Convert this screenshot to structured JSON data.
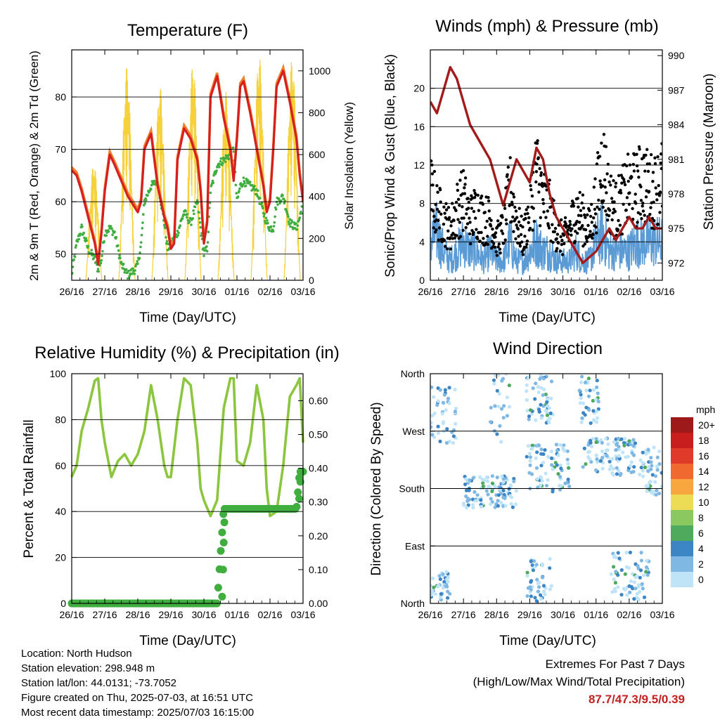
{
  "colors": {
    "temp_red": "#d61f1f",
    "temp_orange": "#f08030",
    "dewpoint_green": "#3fae3f",
    "solar_yellow": "#f5d23c",
    "wind_blue": "#5b9bd5",
    "gust_black": "#000000",
    "pressure_maroon": "#a31c1c",
    "rh_green": "#8cc63f",
    "precip_green": "#3fae3f",
    "extremes_red": "#c42020"
  },
  "x_ticks": [
    "26/16",
    "27/16",
    "28/16",
    "29/16",
    "30/16",
    "01/16",
    "02/16",
    "03/16"
  ],
  "x_label": "Time (Day/UTC)",
  "chart_data": [
    {
      "id": "temperature",
      "type": "line",
      "title": "Temperature (F)",
      "xlabel": "Time (Day/UTC)",
      "ylabel": "2m & 9m T (Red, Orange) & 2m Td (Green)",
      "y2label": "Solar Insolation (Yellow)",
      "ylim": [
        45,
        89
      ],
      "y_ticks": [
        50,
        60,
        70,
        80
      ],
      "y2lim": [
        0,
        1100
      ],
      "y2_ticks": [
        0,
        200,
        400,
        600,
        800,
        1000
      ],
      "x": [
        0,
        0.15,
        0.3,
        0.5,
        0.7,
        0.8,
        0.9,
        1.0,
        1.15,
        1.3,
        1.5,
        1.7,
        1.9,
        2.0,
        2.1,
        2.2,
        2.4,
        2.6,
        2.8,
        2.9,
        3.0,
        3.1,
        3.2,
        3.4,
        3.6,
        3.8,
        3.9,
        4.0,
        4.1,
        4.2,
        4.4,
        4.6,
        4.8,
        4.9,
        5.0,
        5.1,
        5.2,
        5.4,
        5.6,
        5.8,
        5.9,
        6.0,
        6.1,
        6.2,
        6.4,
        6.6,
        6.8,
        6.9,
        7.0
      ],
      "series": [
        {
          "name": "2m T",
          "values": [
            66,
            65,
            62,
            57,
            52,
            48,
            54,
            62,
            69,
            67,
            64,
            61,
            59,
            58,
            60,
            70,
            73,
            63,
            57,
            55,
            51,
            52,
            68,
            74,
            72,
            68,
            62,
            52,
            56,
            80,
            84,
            76,
            70,
            64,
            72,
            82,
            83,
            77,
            70,
            63,
            58,
            60,
            70,
            82,
            85,
            79,
            72,
            65,
            60
          ]
        },
        {
          "name": "2m Td",
          "values": [
            46,
            52,
            55,
            51,
            49,
            47,
            49,
            54,
            55,
            54,
            48,
            46,
            47,
            48,
            52,
            60,
            63,
            64,
            56,
            51,
            52,
            53,
            54,
            58,
            56,
            60,
            55,
            50,
            51,
            62,
            67,
            68,
            69,
            70,
            60,
            63,
            64,
            63,
            62,
            58,
            56,
            55,
            55,
            60,
            61,
            56,
            55,
            57,
            60
          ]
        }
      ],
      "solar_days": [
        {
          "day": 0,
          "peak": 560
        },
        {
          "day": 1,
          "peak": 1020
        },
        {
          "day": 2,
          "peak": 930
        },
        {
          "day": 3,
          "peak": 1040
        },
        {
          "day": 4,
          "peak": 900
        },
        {
          "day": 5,
          "peak": 1080
        },
        {
          "day": 6,
          "peak": 1060
        }
      ]
    },
    {
      "id": "winds",
      "type": "line",
      "title": "Winds (mph) & Pressure (mb)",
      "xlabel": "Time (Day/UTC)",
      "ylabel": "Sonic/Prop Wind & Gust (Blue, Black)",
      "y2label": "Station Pressure (Maroon)",
      "ylim": [
        0,
        24
      ],
      "y_ticks": [
        0,
        4,
        8,
        12,
        16,
        20
      ],
      "y2lim": [
        970.5,
        990.5
      ],
      "y2_ticks": [
        972,
        975,
        978,
        981,
        984,
        987,
        990
      ],
      "x": [
        0,
        0.2,
        0.4,
        0.6,
        0.8,
        1.0,
        1.2,
        1.4,
        1.6,
        1.8,
        2.0,
        2.2,
        2.4,
        2.6,
        2.8,
        3.0,
        3.2,
        3.4,
        3.6,
        3.8,
        4.0,
        4.2,
        4.4,
        4.6,
        4.8,
        5.0,
        5.2,
        5.4,
        5.6,
        5.8,
        6.0,
        6.2,
        6.4,
        6.6,
        6.8,
        7.0
      ],
      "series": [
        {
          "name": "Wind (blue)",
          "values": [
            4,
            5,
            3,
            2,
            3,
            4,
            3,
            3,
            2,
            3,
            2,
            2,
            4,
            2,
            2,
            3,
            4,
            3,
            3,
            2,
            2,
            2,
            3,
            2,
            2,
            4,
            5,
            3,
            3,
            3,
            3,
            4,
            4,
            4,
            4,
            4
          ]
        },
        {
          "name": "Gust (black)",
          "values": [
            9,
            7,
            6,
            5,
            7,
            8,
            6,
            7,
            6,
            6,
            4,
            5,
            9,
            6,
            4,
            7,
            11,
            8,
            7,
            5,
            4,
            5,
            7,
            6,
            5,
            8,
            12,
            8,
            7,
            8,
            9,
            9,
            10,
            9,
            9,
            10
          ]
        },
        {
          "name": "Pressure (maroon)",
          "values": [
            986,
            985,
            987,
            989,
            988,
            986,
            984,
            983,
            982,
            981,
            979,
            977,
            979,
            981,
            980,
            979,
            982,
            981,
            978,
            976,
            975,
            974,
            973,
            972,
            972.5,
            973,
            974,
            975,
            974,
            975,
            976,
            975,
            975,
            976,
            975,
            975
          ]
        }
      ]
    },
    {
      "id": "humidity",
      "type": "line",
      "title": "Relative Humidity (%) & Precipitation (in)",
      "xlabel": "Time (Day/UTC)",
      "ylabel": "Percent & Total Rainfall",
      "ylim": [
        0,
        100
      ],
      "y_ticks": [
        0,
        20,
        40,
        60,
        80,
        100
      ],
      "y2lim": [
        0,
        0.68
      ],
      "y2_ticks": [
        "0.00",
        "0.10",
        "0.20",
        "0.30",
        "0.40",
        "0.50",
        "0.60"
      ],
      "x": [
        0,
        0.15,
        0.3,
        0.5,
        0.7,
        0.8,
        0.9,
        1.0,
        1.2,
        1.4,
        1.6,
        1.8,
        2.0,
        2.2,
        2.4,
        2.6,
        2.8,
        2.9,
        3.0,
        3.2,
        3.4,
        3.6,
        3.8,
        3.9,
        4.0,
        4.2,
        4.4,
        4.6,
        4.8,
        4.9,
        5.0,
        5.2,
        5.4,
        5.6,
        5.8,
        5.9,
        6.0,
        6.2,
        6.4,
        6.6,
        6.8,
        6.9,
        7.0
      ],
      "series": [
        {
          "name": "RH",
          "values": [
            55,
            60,
            75,
            85,
            97,
            98,
            80,
            70,
            55,
            62,
            65,
            60,
            65,
            75,
            95,
            80,
            60,
            55,
            55,
            80,
            98,
            95,
            70,
            50,
            45,
            38,
            45,
            85,
            98,
            98,
            62,
            60,
            70,
            95,
            80,
            50,
            38,
            40,
            60,
            90,
            95,
            98,
            70
          ]
        },
        {
          "name": "Precip",
          "values": [
            0,
            0,
            0,
            0,
            0,
            0,
            0,
            0,
            0,
            0,
            0,
            0,
            0,
            0,
            0,
            0,
            0,
            0,
            0,
            0,
            0,
            0,
            0,
            0,
            0,
            0,
            0,
            0.28,
            0.28,
            0.28,
            0.28,
            0.28,
            0.28,
            0.28,
            0.28,
            0.28,
            0.28,
            0.28,
            0.28,
            0.28,
            0.28,
            0.39,
            0.39
          ]
        }
      ]
    },
    {
      "id": "direction",
      "type": "scatter",
      "title": "Wind Direction",
      "xlabel": "Time (Day/UTC)",
      "ylabel": "Direction (Colored By Speed)",
      "y_ticks": [
        "North",
        "East",
        "South",
        "West",
        "North"
      ],
      "ylim": [
        0,
        360
      ],
      "legend_title": "mph",
      "legend_labels": [
        "20+",
        "18",
        "16",
        "14",
        "12",
        "10",
        "8",
        "6",
        "4",
        "2",
        "0"
      ],
      "legend_colors": [
        "#9e1a1a",
        "#c81e1e",
        "#e03a2a",
        "#f06a30",
        "#f7a640",
        "#ebdb55",
        "#8cc860",
        "#4faa5e",
        "#3d86c6",
        "#80b8e4",
        "#bfe4f7"
      ],
      "clusters": [
        {
          "x0": 0.0,
          "x1": 0.8,
          "dir0": 250,
          "dir1": 340,
          "n": 45
        },
        {
          "x0": 0.0,
          "x1": 0.6,
          "dir0": 5,
          "dir1": 50,
          "n": 40
        },
        {
          "x0": 1.0,
          "x1": 2.6,
          "dir0": 150,
          "dir1": 200,
          "n": 110
        },
        {
          "x0": 2.9,
          "x1": 4.2,
          "dir0": 175,
          "dir1": 250,
          "n": 80
        },
        {
          "x0": 4.6,
          "x1": 6.2,
          "dir0": 200,
          "dir1": 260,
          "n": 100
        },
        {
          "x0": 6.3,
          "x1": 7.0,
          "dir0": 170,
          "dir1": 245,
          "n": 50
        },
        {
          "x0": 2.9,
          "x1": 3.7,
          "dir0": 280,
          "dir1": 360,
          "n": 55
        },
        {
          "x0": 2.9,
          "x1": 3.7,
          "dir0": 0,
          "dir1": 70,
          "n": 45
        },
        {
          "x0": 4.5,
          "x1": 5.1,
          "dir0": 280,
          "dir1": 360,
          "n": 40
        },
        {
          "x0": 5.4,
          "x1": 6.6,
          "dir0": 5,
          "dir1": 80,
          "n": 70
        },
        {
          "x0": 1.8,
          "x1": 2.4,
          "dir0": 250,
          "dir1": 360,
          "n": 25
        }
      ]
    }
  ],
  "footer": {
    "location": "Location: North Hudson",
    "elevation": "Station elevation: 298.948 m",
    "latlon": "Station lat/lon: 44.0131; -73.7052",
    "created": "Figure created on Thu, 2025-07-03, at 16:51 UTC",
    "recent": "Most recent data timestamp: 2025/07/03 16:15:00"
  },
  "extremes": {
    "title": "Extremes For Past 7 Days",
    "subtitle": "(High/Low/Max Wind/Total Precipitation)",
    "values": "87.7/47.3/9.5/0.39"
  }
}
